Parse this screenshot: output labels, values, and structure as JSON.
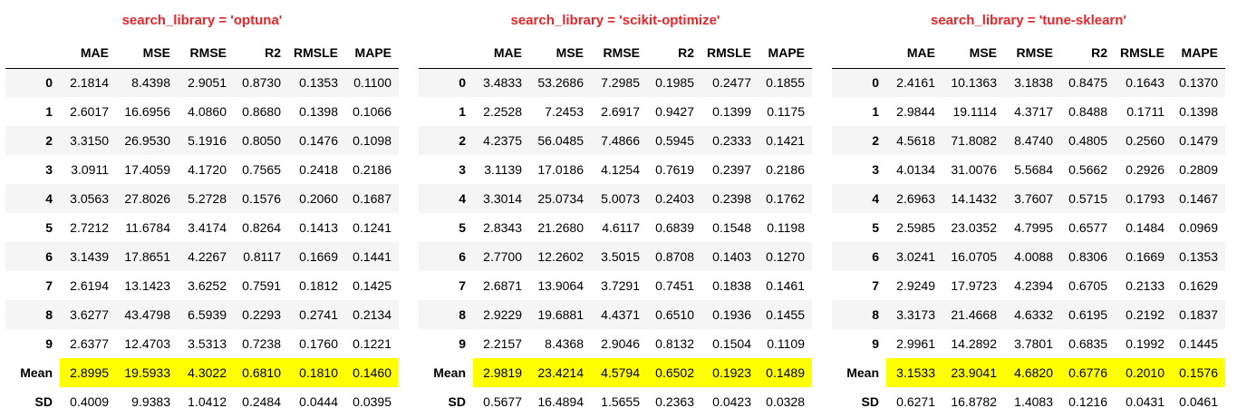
{
  "columns": [
    "",
    "MAE",
    "MSE",
    "RMSE",
    "R2",
    "RMSLE",
    "MAPE"
  ],
  "highlight_color": "#ffff00",
  "title_color": "#e8262a",
  "panels": [
    {
      "title": "search_library = 'optuna'",
      "rows": [
        [
          "0",
          "2.1814",
          "8.4398",
          "2.9051",
          "0.8730",
          "0.1353",
          "0.1100"
        ],
        [
          "1",
          "2.6017",
          "16.6956",
          "4.0860",
          "0.8680",
          "0.1398",
          "0.1066"
        ],
        [
          "2",
          "3.3150",
          "26.9530",
          "5.1916",
          "0.8050",
          "0.1476",
          "0.1098"
        ],
        [
          "3",
          "3.0911",
          "17.4059",
          "4.1720",
          "0.7565",
          "0.2418",
          "0.2186"
        ],
        [
          "4",
          "3.0563",
          "27.8026",
          "5.2728",
          "0.1576",
          "0.2060",
          "0.1687"
        ],
        [
          "5",
          "2.7212",
          "11.6784",
          "3.4174",
          "0.8264",
          "0.1413",
          "0.1241"
        ],
        [
          "6",
          "3.1439",
          "17.8651",
          "4.2267",
          "0.8117",
          "0.1669",
          "0.1441"
        ],
        [
          "7",
          "2.6194",
          "13.1423",
          "3.6252",
          "0.7591",
          "0.1812",
          "0.1425"
        ],
        [
          "8",
          "3.6277",
          "43.4798",
          "6.5939",
          "0.2293",
          "0.2741",
          "0.2134"
        ],
        [
          "9",
          "2.6377",
          "12.4703",
          "3.5313",
          "0.7238",
          "0.1760",
          "0.1221"
        ],
        [
          "Mean",
          "2.8995",
          "19.5933",
          "4.3022",
          "0.6810",
          "0.1810",
          "0.1460"
        ],
        [
          "SD",
          "0.4009",
          "9.9383",
          "1.0412",
          "0.2484",
          "0.0444",
          "0.0395"
        ]
      ]
    },
    {
      "title": "search_library = 'scikit-optimize'",
      "rows": [
        [
          "0",
          "3.4833",
          "53.2686",
          "7.2985",
          "0.1985",
          "0.2477",
          "0.1855"
        ],
        [
          "1",
          "2.2528",
          "7.2453",
          "2.6917",
          "0.9427",
          "0.1399",
          "0.1175"
        ],
        [
          "2",
          "4.2375",
          "56.0485",
          "7.4866",
          "0.5945",
          "0.2333",
          "0.1421"
        ],
        [
          "3",
          "3.1139",
          "17.0186",
          "4.1254",
          "0.7619",
          "0.2397",
          "0.2186"
        ],
        [
          "4",
          "3.3014",
          "25.0734",
          "5.0073",
          "0.2403",
          "0.2398",
          "0.1762"
        ],
        [
          "5",
          "2.8343",
          "21.2680",
          "4.6117",
          "0.6839",
          "0.1548",
          "0.1198"
        ],
        [
          "6",
          "2.7700",
          "12.2602",
          "3.5015",
          "0.8708",
          "0.1403",
          "0.1270"
        ],
        [
          "7",
          "2.6871",
          "13.9064",
          "3.7291",
          "0.7451",
          "0.1838",
          "0.1461"
        ],
        [
          "8",
          "2.9229",
          "19.6881",
          "4.4371",
          "0.6510",
          "0.1936",
          "0.1455"
        ],
        [
          "9",
          "2.2157",
          "8.4368",
          "2.9046",
          "0.8132",
          "0.1504",
          "0.1109"
        ],
        [
          "Mean",
          "2.9819",
          "23.4214",
          "4.5794",
          "0.6502",
          "0.1923",
          "0.1489"
        ],
        [
          "SD",
          "0.5677",
          "16.4894",
          "1.5655",
          "0.2363",
          "0.0423",
          "0.0328"
        ]
      ]
    },
    {
      "title": "search_library = 'tune-sklearn'",
      "rows": [
        [
          "0",
          "2.4161",
          "10.1363",
          "3.1838",
          "0.8475",
          "0.1643",
          "0.1370"
        ],
        [
          "1",
          "2.9844",
          "19.1114",
          "4.3717",
          "0.8488",
          "0.1711",
          "0.1398"
        ],
        [
          "2",
          "4.5618",
          "71.8082",
          "8.4740",
          "0.4805",
          "0.2560",
          "0.1479"
        ],
        [
          "3",
          "4.0134",
          "31.0076",
          "5.5684",
          "0.5662",
          "0.2926",
          "0.2809"
        ],
        [
          "4",
          "2.6963",
          "14.1432",
          "3.7607",
          "0.5715",
          "0.1793",
          "0.1467"
        ],
        [
          "5",
          "2.5985",
          "23.0352",
          "4.7995",
          "0.6577",
          "0.1484",
          "0.0969"
        ],
        [
          "6",
          "3.0241",
          "16.0705",
          "4.0088",
          "0.8306",
          "0.1669",
          "0.1353"
        ],
        [
          "7",
          "2.9249",
          "17.9723",
          "4.2394",
          "0.6705",
          "0.2133",
          "0.1629"
        ],
        [
          "8",
          "3.3173",
          "21.4668",
          "4.6332",
          "0.6195",
          "0.2192",
          "0.1837"
        ],
        [
          "9",
          "2.9961",
          "14.2892",
          "3.7801",
          "0.6835",
          "0.1992",
          "0.1445"
        ],
        [
          "Mean",
          "3.1533",
          "23.9041",
          "4.6820",
          "0.6776",
          "0.2010",
          "0.1576"
        ],
        [
          "SD",
          "0.6271",
          "16.8782",
          "1.4083",
          "0.1216",
          "0.0431",
          "0.0461"
        ]
      ]
    }
  ]
}
